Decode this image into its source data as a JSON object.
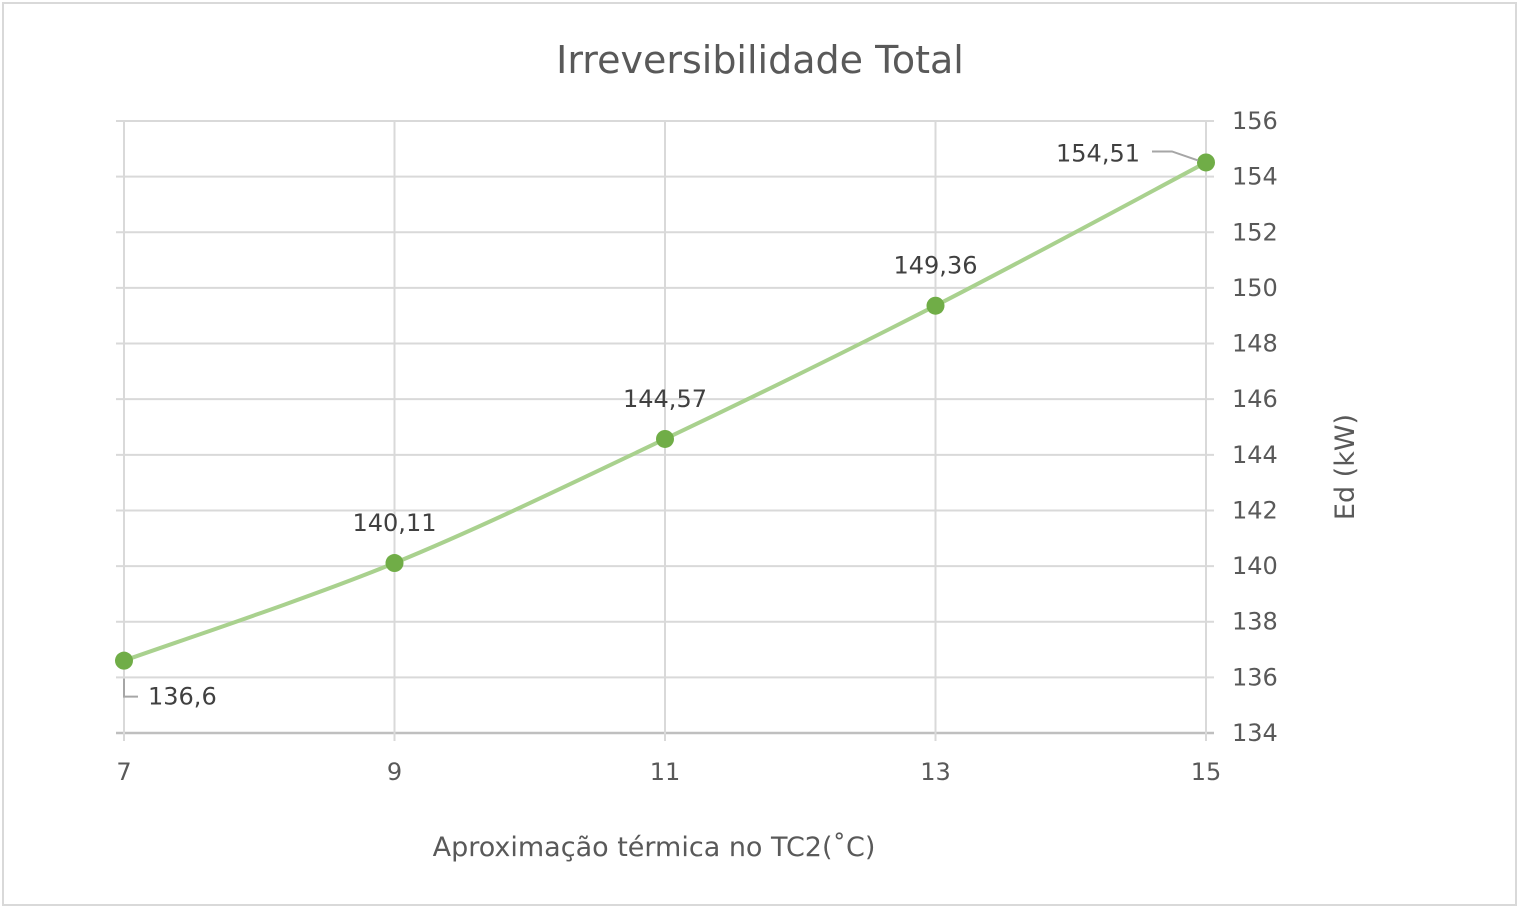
{
  "chart_data": {
    "type": "line",
    "title": "Irreversibilidade Total",
    "xlabel": "Aproximação térmica no TC2(˚C)",
    "ylabel": "Ed (kW)",
    "x": [
      7,
      9,
      11,
      13,
      15
    ],
    "x_tick_labels": [
      "7",
      "9",
      "11",
      "13",
      "15"
    ],
    "xlim": [
      7,
      15
    ],
    "ylim": [
      134,
      156
    ],
    "y_ticks": [
      134,
      136,
      138,
      140,
      142,
      144,
      146,
      148,
      150,
      152,
      154,
      156
    ],
    "y_axis_position": "right",
    "grid": true,
    "smooth": true,
    "series": [
      {
        "values": [
          136.6,
          140.11,
          144.57,
          149.36,
          154.51
        ],
        "data_labels": [
          "136,6",
          "140,11",
          "144,57",
          "149,36",
          "154,51"
        ],
        "color": "#a9d18e",
        "marker_color": "#70ad47"
      }
    ]
  }
}
